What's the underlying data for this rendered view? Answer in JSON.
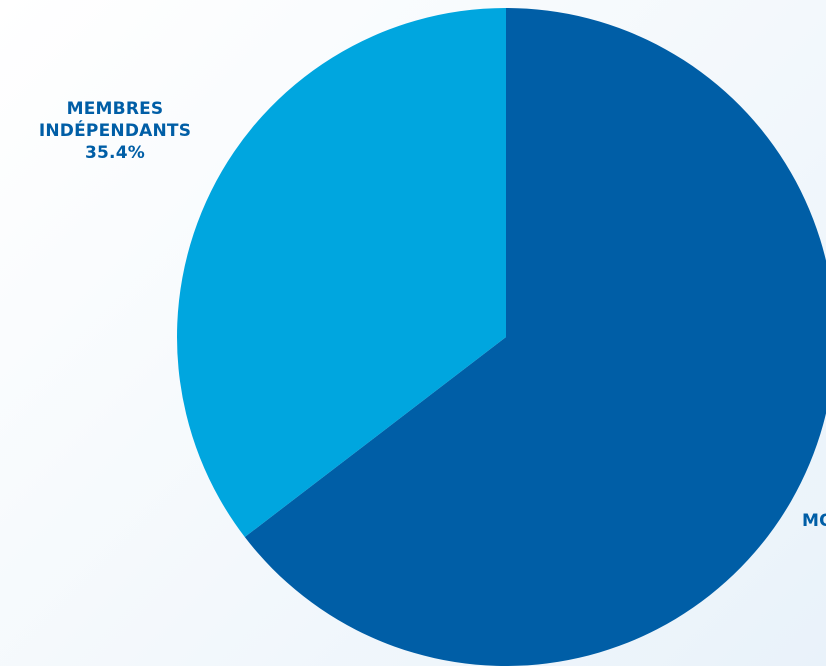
{
  "chart_data": {
    "type": "pie",
    "colors": {
      "independants": "#00a6df",
      "other": "#005ea6",
      "label": "#005ea6"
    },
    "slices": [
      {
        "key": "other",
        "label_visible": "MO",
        "value": 64.6
      },
      {
        "key": "independants",
        "label_line1": "MEMBRES",
        "label_line2": "INDÉPENDANTS",
        "value_label": "35.4%",
        "value": 35.4
      }
    ]
  }
}
